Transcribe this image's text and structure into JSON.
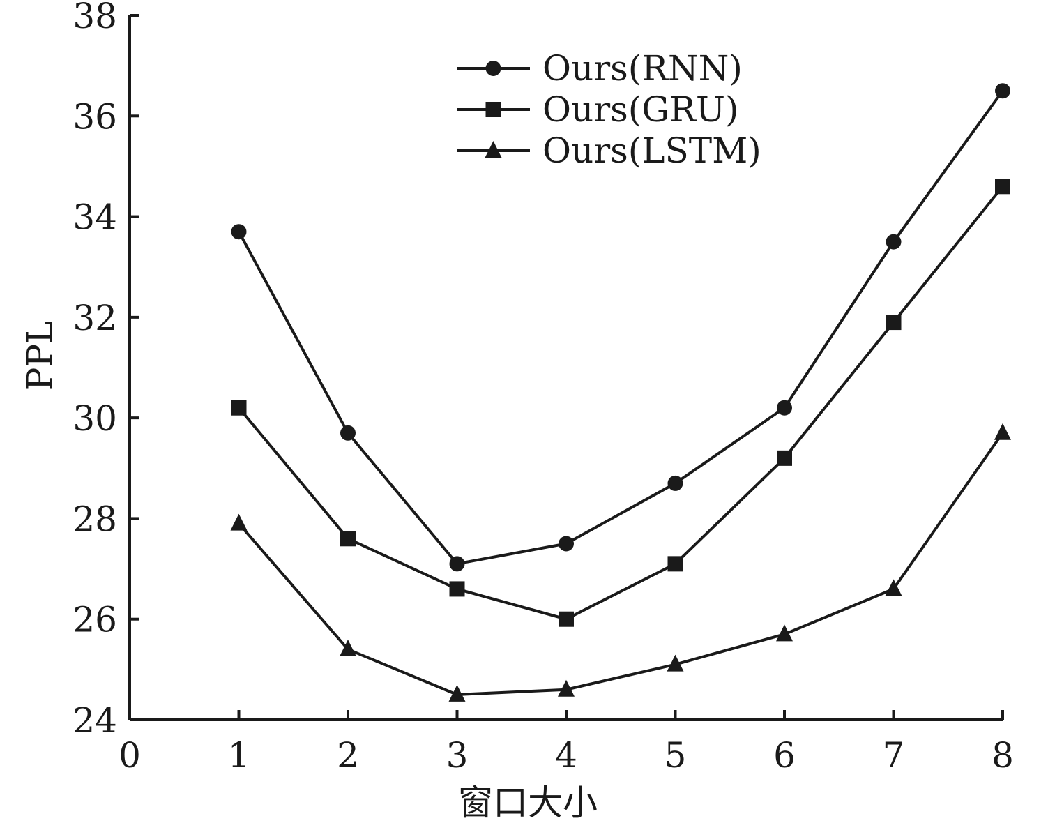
{
  "chart_data": {
    "type": "line",
    "xlabel": "窗口大小",
    "ylabel": "PPL",
    "xlim": [
      0,
      8
    ],
    "ylim": [
      24,
      38
    ],
    "xticks": [
      0,
      1,
      2,
      3,
      4,
      5,
      6,
      7,
      8
    ],
    "yticks": [
      24,
      26,
      28,
      30,
      32,
      34,
      36,
      38
    ],
    "grid": false,
    "legend_position": "top-center",
    "x": [
      1,
      2,
      3,
      4,
      5,
      6,
      7,
      8
    ],
    "series": [
      {
        "name": "Ours(RNN)",
        "marker": "circle",
        "values": [
          33.7,
          29.7,
          27.1,
          27.5,
          28.7,
          30.2,
          33.5,
          36.5
        ]
      },
      {
        "name": "Ours(GRU)",
        "marker": "square",
        "values": [
          30.2,
          27.6,
          26.6,
          26.0,
          27.1,
          29.2,
          31.9,
          34.6
        ]
      },
      {
        "name": "Ours(LSTM)",
        "marker": "triangle",
        "values": [
          27.9,
          25.4,
          24.5,
          24.6,
          25.1,
          25.7,
          26.6,
          29.7
        ]
      }
    ]
  }
}
